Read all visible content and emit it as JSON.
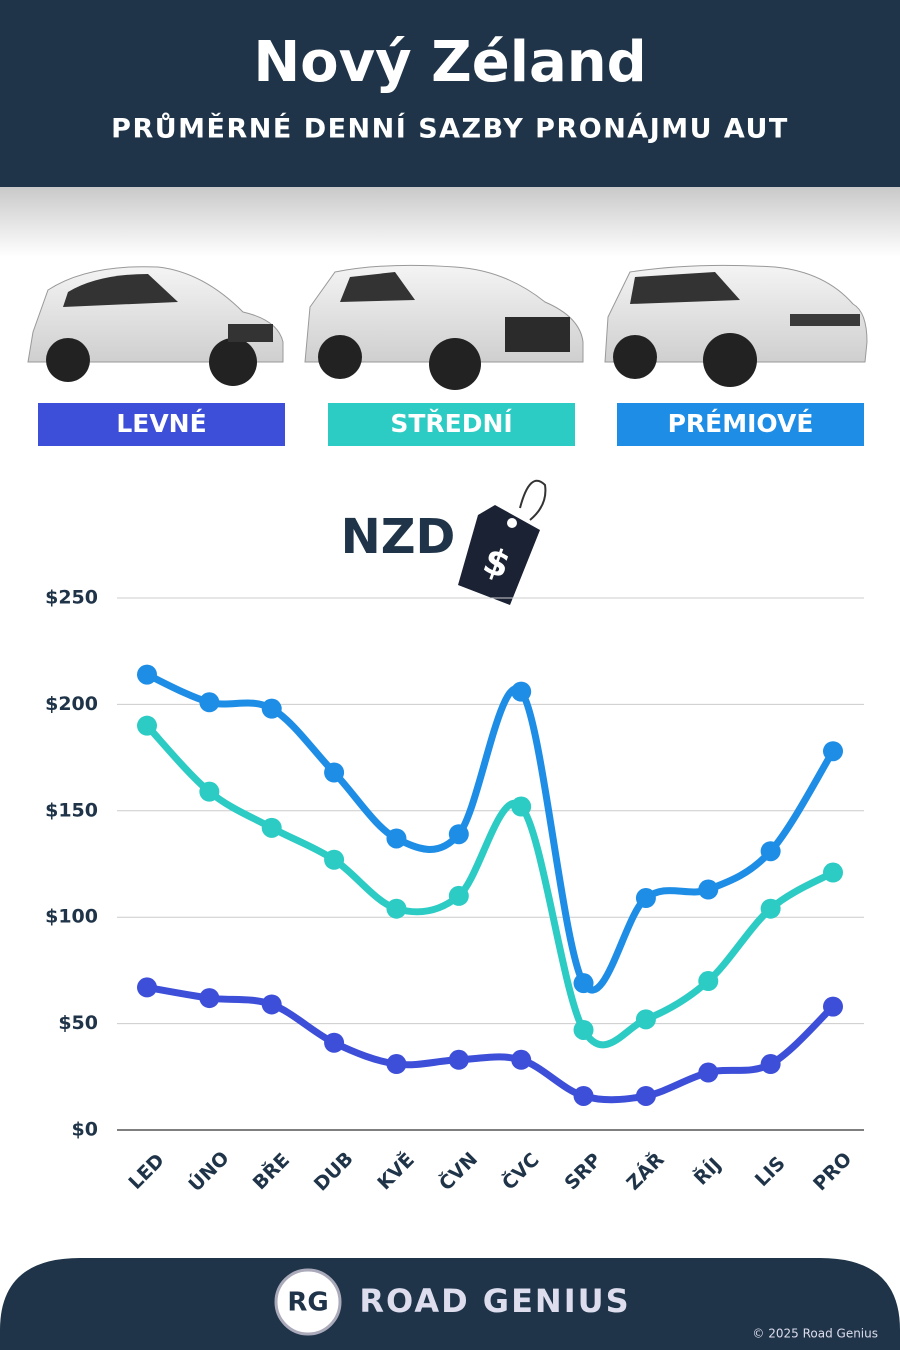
{
  "header": {
    "title": "Nový Zéland",
    "subtitle": "PRŮMĚRNÉ DENNÍ SAZBY PRONÁJMU AUT"
  },
  "currency": "NZD",
  "chart_data": {
    "type": "line",
    "categories": [
      "LED",
      "ÚNO",
      "BŘE",
      "DUB",
      "KVĚ",
      "ČVN",
      "ČVC",
      "SRP",
      "ZÁŘ",
      "ŘÍJ",
      "LIS",
      "PRO"
    ],
    "series": [
      {
        "name": "LEVNÉ",
        "color": "#3d4fd8",
        "values": [
          67,
          62,
          59,
          41,
          31,
          33,
          33,
          16,
          16,
          27,
          31,
          58
        ]
      },
      {
        "name": "STŘEDNÍ",
        "color": "#2ccbc4",
        "values": [
          190,
          159,
          142,
          127,
          104,
          110,
          152,
          47,
          52,
          70,
          104,
          121
        ]
      },
      {
        "name": "PRÉMIOVÉ",
        "color": "#1e8de6",
        "values": [
          214,
          201,
          198,
          168,
          137,
          139,
          206,
          69,
          109,
          113,
          131,
          178
        ]
      }
    ],
    "ylim": [
      0,
      250
    ],
    "yticks": [
      {
        "value": 0,
        "label": "$0"
      },
      {
        "value": 50,
        "label": "$50"
      },
      {
        "value": 100,
        "label": "$100"
      },
      {
        "value": 150,
        "label": "$150"
      },
      {
        "value": 200,
        "label": "$200"
      },
      {
        "value": 250,
        "label": "$250"
      }
    ],
    "grid": true
  },
  "footer": {
    "logo": "RG",
    "brand": "ROAD GENIUS",
    "copyright": "© 2025 Road Genius"
  }
}
